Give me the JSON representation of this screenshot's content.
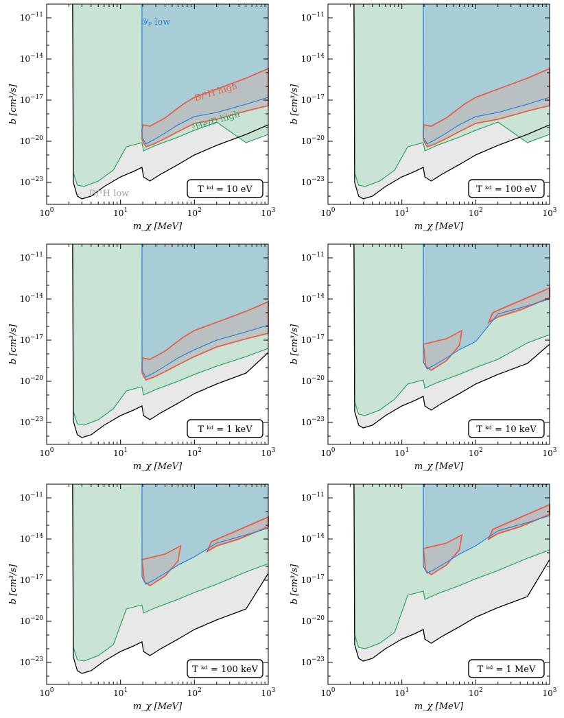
{
  "figure": {
    "description_labels": {
      "x_axis": "m_χ  [MeV]",
      "y_axis": "b  [cm³/s]"
    },
    "colors": {
      "green": "#3aa86a",
      "green_fill": "#c9e3d4",
      "blue": "#2e86de",
      "blue_fill": "#a9cdd6",
      "red": "#e5604a",
      "grey_fill": "#e8e8e8",
      "dark_grey_fill": "#bdbdbd",
      "black": "#000000"
    }
  },
  "chart_data": [
    {
      "type": "area",
      "panel": "T10eV",
      "label": "T^kd = 10 eV",
      "label_display": "T ᵏᵈ = 10 eV",
      "xlabel": "m_χ  [MeV]",
      "ylabel": "b  [cm³/s]",
      "xscale": "log",
      "yscale": "log",
      "xlim": [
        1,
        1000
      ],
      "ylim_log10": [
        -24.5,
        -10.0
      ],
      "x_ticks": [
        "10^0",
        "10^1",
        "10^2",
        "10^3"
      ],
      "y_ticks": [
        "10^-11",
        "10^-14",
        "10^-17",
        "10^-20",
        "10^-23"
      ],
      "annotations": [
        {
          "text": "𝒴ₚ low",
          "color": "#2e86de",
          "x": 30,
          "y_log10": -11.5
        },
        {
          "text": "D/¹H high",
          "color": "#e5604a",
          "x": 200,
          "y_log10": -16.6,
          "rotate": -17
        },
        {
          "text": "³He/D high",
          "color": "#3aa86a",
          "x": 200,
          "y_log10": -18.7,
          "rotate": -17
        },
        {
          "text": "D/¹H low",
          "color": "#a0a0a0",
          "x": 7,
          "y_log10": -24.0
        }
      ],
      "boundaries": {
        "dlow_black_x": [
          2.25,
          2.3,
          2.5,
          3.0,
          4.0,
          6.0,
          10.0,
          15.0,
          19.5,
          20.5,
          25.0,
          35.0,
          60.0,
          100.0,
          200.0,
          500.0,
          1000.0
        ],
        "dlow_black_ylog": [
          -10.0,
          -23.0,
          -23.9,
          -24.2,
          -24.0,
          -23.3,
          -22.6,
          -22.2,
          -21.9,
          -22.6,
          -22.9,
          -22.4,
          -21.6,
          -20.8,
          -20.2,
          -19.4,
          -18.8
        ],
        "he3_green_x": [
          2.25,
          2.3,
          2.6,
          3.2,
          5.0,
          8.0,
          12.0,
          19.5
        ],
        "he3_green_ylog": [
          -10.0,
          -22.5,
          -23.1,
          -23.2,
          -22.9,
          -21.9,
          -20.4,
          -20.1
        ],
        "yp_blue_x": [
          19.5,
          19.6,
          22.0,
          28.0,
          40.0,
          60.0,
          100.0,
          200.0,
          500.0,
          1000.0
        ],
        "yp_blue_ylog": [
          -10.0,
          -19.7,
          -20.2,
          -20.0,
          -19.5,
          -18.9,
          -18.4,
          -17.9,
          -17.3,
          -16.8
        ],
        "dhigh_red_upper_x": [
          19.5,
          20.0,
          25.0,
          40.0,
          70.0,
          100.0,
          200.0,
          500.0,
          1000.0
        ],
        "dhigh_red_upper_ylog": [
          -19.2,
          -18.8,
          -19.0,
          -18.4,
          -17.4,
          -16.8,
          -16.2,
          -15.4,
          -14.7
        ]
      }
    },
    {
      "type": "area",
      "panel": "T100eV",
      "label": "T^kd = 100 eV",
      "label_display": "T ᵏᵈ = 100 eV",
      "xlabel": "m_χ  [MeV]",
      "ylabel": "b  [cm³/s]",
      "xlim": [
        1,
        1000
      ],
      "ylim_log10": [
        -24.5,
        -10.0
      ],
      "x_ticks": [
        "10^0",
        "10^1",
        "10^2",
        "10^3"
      ],
      "y_ticks": [
        "10^-11",
        "10^-14",
        "10^-17",
        "10^-20",
        "10^-23"
      ]
    },
    {
      "type": "area",
      "panel": "T1keV",
      "label": "T^kd = 1 keV",
      "label_display": "T ᵏᵈ = 1 keV",
      "xlabel": "m_χ  [MeV]",
      "ylabel": "b  [cm³/s]",
      "xlim": [
        1,
        1000
      ],
      "ylim_log10": [
        -24.5,
        -10.0
      ],
      "x_ticks": [
        "10^0",
        "10^1",
        "10^2",
        "10^3"
      ],
      "y_ticks": [
        "10^-11",
        "10^-14",
        "10^-17",
        "10^-20",
        "10^-23"
      ]
    },
    {
      "type": "area",
      "panel": "T10keV",
      "label": "T^kd = 10 keV",
      "label_display": "T ᵏᵈ = 10 keV",
      "xlabel": "m_χ  [MeV]",
      "ylabel": "b  [cm³/s]",
      "xlim": [
        1,
        1000
      ],
      "ylim_log10": [
        -24.5,
        -10.0
      ],
      "x_ticks": [
        "10^0",
        "10^1",
        "10^2",
        "10^3"
      ],
      "y_ticks": [
        "10^-11",
        "10^-14",
        "10^-17",
        "10^-20",
        "10^-23"
      ]
    },
    {
      "type": "area",
      "panel": "T100keV",
      "label": "T^kd = 100 keV",
      "label_display": "T ᵏᵈ = 100 keV",
      "xlabel": "m_χ  [MeV]",
      "ylabel": "b  [cm³/s]",
      "xlim": [
        1,
        1000
      ],
      "ylim_log10": [
        -24.5,
        -10.0
      ],
      "x_ticks": [
        "10^0",
        "10^1",
        "10^2",
        "10^3"
      ],
      "y_ticks": [
        "10^-11",
        "10^-14",
        "10^-17",
        "10^-20",
        "10^-23"
      ]
    },
    {
      "type": "area",
      "panel": "T1MeV",
      "label": "T^kd = 1 MeV",
      "label_display": "T ᵏᵈ = 1 MeV",
      "xlabel": "m_χ  [MeV]",
      "ylabel": "b  [cm³/s]",
      "xlim": [
        1,
        1000
      ],
      "ylim_log10": [
        -24.5,
        -10.0
      ],
      "x_ticks": [
        "10^0",
        "10^1",
        "10^2",
        "10^3"
      ],
      "y_ticks": [
        "10^-11",
        "10^-14",
        "10^-17",
        "10^-20",
        "10^-23"
      ]
    }
  ]
}
